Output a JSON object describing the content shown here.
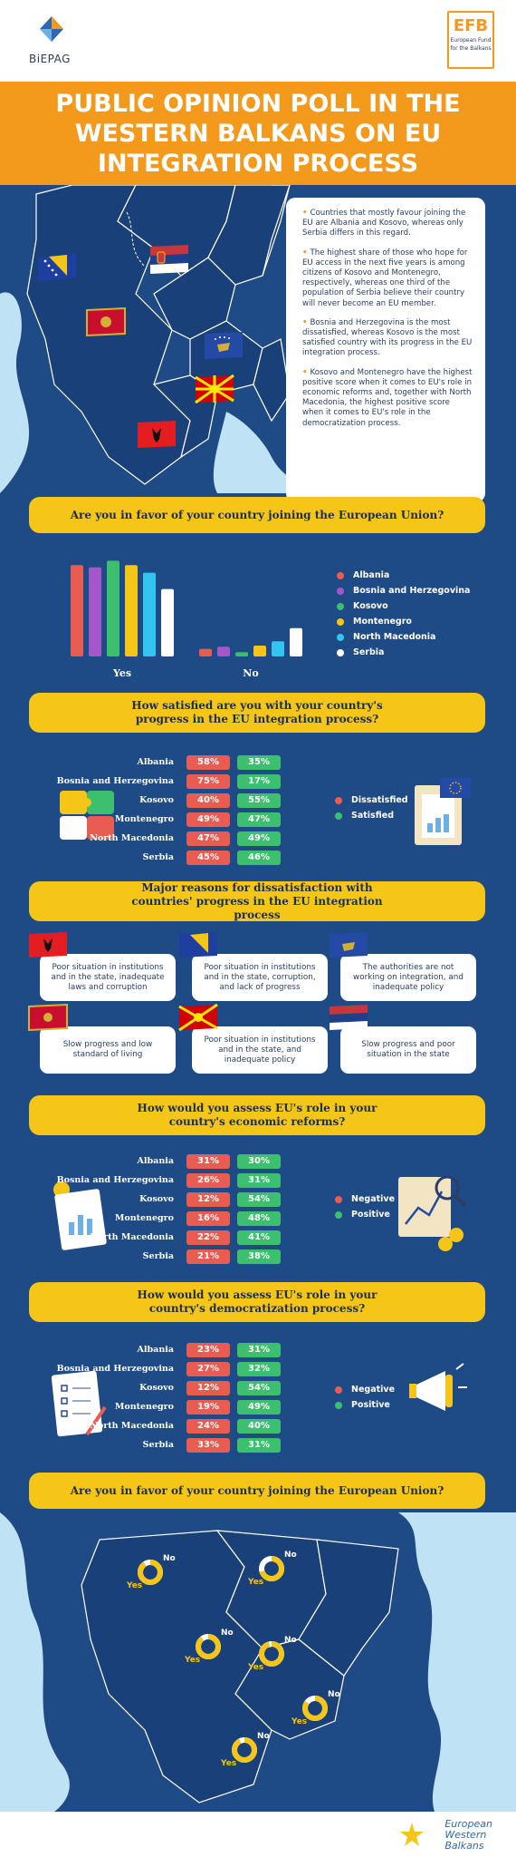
{
  "header": {
    "left_logo_text": "BiEPAG",
    "right_logo_big": "EFB",
    "right_logo_small_1": "European Fund",
    "right_logo_small_2": "for the Balkans"
  },
  "title": "PUBLIC OPINION POLL IN THE WESTERN BALKANS ON EU INTEGRATION PROCESS",
  "notes": [
    "Countries that mostly favour joining the EU are Albania and Kosovo, whereas only Serbia differs in this regard.",
    "The highest share of those who hope for EU access in the next five years is among citizens of Kosovo and Montenegro, respectively, whereas one third of the population of Serbia believe their country will never become an EU member.",
    "Bosnia and Herzegovina is the most dissatisfied, whereas Kosovo is the most satisfied country with its progress in the EU integration process.",
    "Kosovo and Montenegro have the highest positive score when it comes to EU's role in economic reforms and, together with North Macedonia, the highest positive score when it comes to EU's role in the democratization process."
  ],
  "q1": {
    "question": "Are you in favor of your country joining the European Union?",
    "chart_data": {
      "type": "bar",
      "categories": [
        "Yes",
        "No"
      ],
      "series": [
        {
          "name": "Albania",
          "color": "#e85c52",
          "values": [
            84,
            7
          ]
        },
        {
          "name": "Bosnia and Herzegovina",
          "color": "#a457c9",
          "values": [
            82,
            9
          ]
        },
        {
          "name": "Kosovo",
          "color": "#3cbf6f",
          "values": [
            88,
            4
          ]
        },
        {
          "name": "Montenegro",
          "color": "#f5c518",
          "values": [
            84,
            10
          ]
        },
        {
          "name": "North Macedonia",
          "color": "#33c5f0",
          "values": [
            77,
            14
          ]
        },
        {
          "name": "Serbia",
          "color": "#ffffff",
          "values": [
            62,
            26
          ]
        }
      ]
    }
  },
  "q2": {
    "question": "How satisfied are you with your country's progress in the EU integration process?",
    "legend": [
      {
        "label": "Dissatisfied",
        "color": "#e85c52"
      },
      {
        "label": "Satisfied",
        "color": "#3cbf6f"
      }
    ],
    "rows": [
      {
        "country": "Albania",
        "neg": "58%",
        "pos": "35%"
      },
      {
        "country": "Bosnia and Herzegovina",
        "neg": "75%",
        "pos": "17%"
      },
      {
        "country": "Kosovo",
        "neg": "40%",
        "pos": "55%"
      },
      {
        "country": "Montenegro",
        "neg": "49%",
        "pos": "47%"
      },
      {
        "country": "North Macedonia",
        "neg": "47%",
        "pos": "49%"
      },
      {
        "country": "Serbia",
        "neg": "45%",
        "pos": "46%"
      }
    ]
  },
  "q3": {
    "question": "Major reasons for dissatisfaction with countries' progress in the EU integration process",
    "reasons": [
      "Poor situation in institutions and in the state, inadequate laws and corruption",
      "Poor situation in institutions and in the state, corruption, and lack of progress",
      "The authorities are not working on integration, and inadequate policy",
      "Slow progress and low standard of living",
      "Poor situation in institutions and in the state, and inadequate policy",
      "Slow progress and poor situation in the state"
    ]
  },
  "q4": {
    "question": "How would you assess EU's role in your country's economic reforms?",
    "legend": [
      {
        "label": "Negative",
        "color": "#e85c52"
      },
      {
        "label": "Positive",
        "color": "#3cbf6f"
      }
    ],
    "rows": [
      {
        "country": "Albania",
        "neg": "31%",
        "pos": "30%"
      },
      {
        "country": "Bosnia and Herzegovina",
        "neg": "26%",
        "pos": "31%"
      },
      {
        "country": "Kosovo",
        "neg": "12%",
        "pos": "54%"
      },
      {
        "country": "Montenegro",
        "neg": "16%",
        "pos": "48%"
      },
      {
        "country": "North Macedonia",
        "neg": "22%",
        "pos": "41%"
      },
      {
        "country": "Serbia",
        "neg": "21%",
        "pos": "38%"
      }
    ]
  },
  "q5": {
    "question": "How would you assess EU's role in your country's democratization process?",
    "legend": [
      {
        "label": "Negative",
        "color": "#e85c52"
      },
      {
        "label": "Positive",
        "color": "#3cbf6f"
      }
    ],
    "rows": [
      {
        "country": "Albania",
        "neg": "23%",
        "pos": "31%"
      },
      {
        "country": "Bosnia and Herzegovina",
        "neg": "27%",
        "pos": "32%"
      },
      {
        "country": "Kosovo",
        "neg": "12%",
        "pos": "54%"
      },
      {
        "country": "Montenegro",
        "neg": "19%",
        "pos": "49%"
      },
      {
        "country": "North Macedonia",
        "neg": "24%",
        "pos": "40%"
      },
      {
        "country": "Serbia",
        "neg": "33%",
        "pos": "31%"
      }
    ]
  },
  "q6": {
    "question": "Are you in favor of your country joining the European Union?",
    "yes_label": "Yes",
    "no_label": "No"
  },
  "footer": {
    "line1": "European",
    "line2": "Western",
    "line3": "Balkans"
  }
}
